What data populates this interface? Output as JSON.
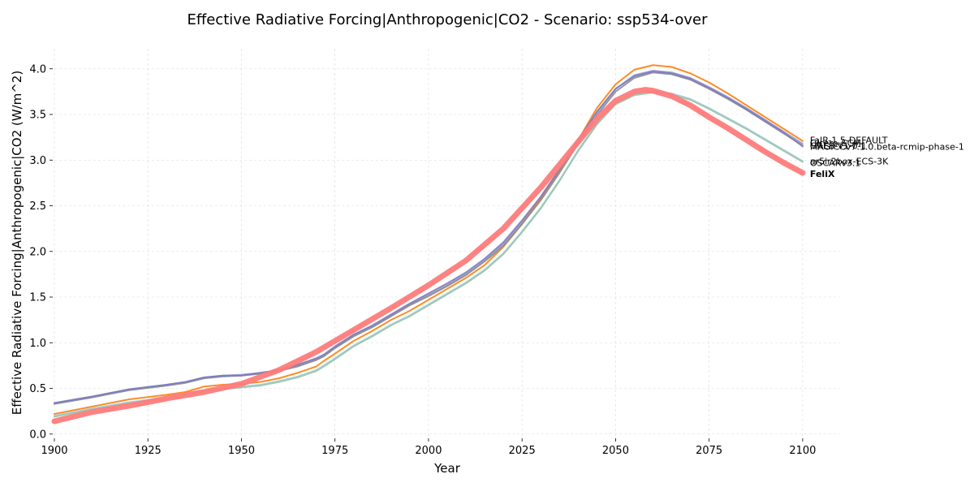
{
  "chart_data": {
    "type": "line",
    "title": "Effective Radiative Forcing|Anthropogenic|CO2 - Scenario: ssp534-over",
    "xlabel": "Year",
    "ylabel": "Effective Radiative Forcing|Anthropogenic|CO2 (W/m^2)",
    "xlim": [
      1900,
      2110
    ],
    "ylim": [
      -0.02,
      4.22
    ],
    "xticks": [
      1900,
      1925,
      1950,
      1975,
      2000,
      2025,
      2050,
      2075,
      2100
    ],
    "yticks": [
      0.0,
      0.5,
      1.0,
      1.5,
      2.0,
      2.5,
      3.0,
      3.5,
      4.0
    ],
    "grid": true,
    "legend": "labels at line ends (right)",
    "series": [
      {
        "name": "Cicero-SCM",
        "color": "#9b9bd4",
        "width": 2,
        "x": [
          1900,
          1910,
          1920,
          1930,
          1935,
          1940,
          1945,
          1950,
          1955,
          1960,
          1965,
          1970,
          1972,
          1975,
          1980,
          1985,
          1990,
          1995,
          2000,
          2005,
          2010,
          2015,
          2020,
          2025,
          2030,
          2035,
          2040,
          2045,
          2050,
          2055,
          2060,
          2065,
          2070,
          2075,
          2080,
          2085,
          2090,
          2095,
          2100
        ],
        "y": [
          0.34,
          0.41,
          0.49,
          0.54,
          0.57,
          0.62,
          0.64,
          0.65,
          0.67,
          0.7,
          0.75,
          0.82,
          0.86,
          0.95,
          1.08,
          1.18,
          1.3,
          1.42,
          1.52,
          1.63,
          1.75,
          1.9,
          2.08,
          2.32,
          2.58,
          2.88,
          3.2,
          3.52,
          3.78,
          3.93,
          3.98,
          3.96,
          3.9,
          3.8,
          3.69,
          3.57,
          3.44,
          3.31,
          3.18
        ]
      },
      {
        "name": "FaIR-1.5-DEFAULT",
        "color": "#ff7f0e",
        "width": 2,
        "x": [
          1900,
          1910,
          1920,
          1930,
          1935,
          1940,
          1945,
          1950,
          1955,
          1960,
          1965,
          1970,
          1972,
          1975,
          1980,
          1985,
          1990,
          1995,
          2000,
          2005,
          2010,
          2015,
          2020,
          2025,
          2030,
          2035,
          2040,
          2045,
          2050,
          2055,
          2060,
          2065,
          2070,
          2075,
          2080,
          2085,
          2090,
          2095,
          2100
        ],
        "y": [
          0.22,
          0.3,
          0.38,
          0.43,
          0.46,
          0.52,
          0.54,
          0.55,
          0.57,
          0.61,
          0.67,
          0.74,
          0.8,
          0.88,
          1.02,
          1.13,
          1.25,
          1.35,
          1.47,
          1.59,
          1.71,
          1.85,
          2.05,
          2.3,
          2.58,
          2.88,
          3.22,
          3.57,
          3.83,
          3.99,
          4.04,
          4.02,
          3.95,
          3.85,
          3.73,
          3.6,
          3.47,
          3.34,
          3.21
        ]
      },
      {
        "name": "GREB-v1-0-1",
        "color": "#8c8c8c",
        "width": 2,
        "x": [
          1900,
          1910,
          1920,
          1930,
          1935,
          1940,
          1945,
          1950,
          1955,
          1960,
          1965,
          1970,
          1972,
          1975,
          1980,
          1985,
          1990,
          1995,
          2000,
          2005,
          2010,
          2015,
          2020,
          2025,
          2030,
          2035,
          2040,
          2045,
          2050,
          2055,
          2060,
          2065,
          2070,
          2075,
          2080,
          2085,
          2090,
          2095,
          2100
        ],
        "y": [
          0.33,
          0.4,
          0.48,
          0.53,
          0.56,
          0.61,
          0.63,
          0.64,
          0.66,
          0.69,
          0.74,
          0.81,
          0.85,
          0.94,
          1.07,
          1.17,
          1.29,
          1.41,
          1.51,
          1.62,
          1.74,
          1.89,
          2.06,
          2.3,
          2.56,
          2.86,
          3.18,
          3.49,
          3.75,
          3.9,
          3.96,
          3.94,
          3.88,
          3.78,
          3.67,
          3.55,
          3.42,
          3.29,
          3.16
        ]
      },
      {
        "name": "MAGICCv7.1.0.beta-rcmip-phase-1",
        "color": "#7b7bc0",
        "width": 2,
        "x": [
          1900,
          1910,
          1920,
          1930,
          1935,
          1940,
          1945,
          1950,
          1955,
          1960,
          1965,
          1970,
          1972,
          1975,
          1980,
          1985,
          1990,
          1995,
          2000,
          2005,
          2010,
          2015,
          2020,
          2025,
          2030,
          2035,
          2040,
          2045,
          2050,
          2055,
          2060,
          2065,
          2070,
          2075,
          2080,
          2085,
          2090,
          2095,
          2100
        ],
        "y": [
          0.34,
          0.41,
          0.49,
          0.54,
          0.57,
          0.62,
          0.64,
          0.64,
          0.67,
          0.7,
          0.76,
          0.83,
          0.87,
          0.96,
          1.09,
          1.19,
          1.31,
          1.43,
          1.54,
          1.65,
          1.77,
          1.92,
          2.1,
          2.34,
          2.6,
          2.9,
          3.22,
          3.53,
          3.78,
          3.92,
          3.97,
          3.95,
          3.89,
          3.79,
          3.68,
          3.56,
          3.43,
          3.3,
          3.15
        ]
      },
      {
        "name": "ar5ir2box-ECS-3K",
        "color": "#a6cee3",
        "width": 2,
        "x": [
          1900,
          1910,
          1920,
          1930,
          1935,
          1940,
          1945,
          1950,
          1955,
          1960,
          1965,
          1970,
          1972,
          1975,
          1980,
          1985,
          1990,
          1995,
          2000,
          2005,
          2010,
          2015,
          2020,
          2025,
          2030,
          2035,
          2040,
          2045,
          2050,
          2055,
          2060,
          2065,
          2070,
          2075,
          2080,
          2085,
          2090,
          2095,
          2100
        ],
        "y": [
          0.2,
          0.28,
          0.35,
          0.4,
          0.43,
          0.48,
          0.5,
          0.52,
          0.54,
          0.58,
          0.63,
          0.7,
          0.75,
          0.83,
          0.97,
          1.08,
          1.2,
          1.3,
          1.42,
          1.54,
          1.66,
          1.8,
          1.98,
          2.22,
          2.48,
          2.78,
          3.11,
          3.4,
          3.62,
          3.72,
          3.75,
          3.73,
          3.67,
          3.57,
          3.46,
          3.35,
          3.23,
          3.11,
          2.99
        ]
      },
      {
        "name": "OSCARv3.1",
        "color": "#99c4a8",
        "width": 2,
        "x": [
          1900,
          1910,
          1920,
          1930,
          1935,
          1940,
          1945,
          1950,
          1955,
          1960,
          1965,
          1970,
          1972,
          1975,
          1980,
          1985,
          1990,
          1995,
          2000,
          2005,
          2010,
          2015,
          2020,
          2025,
          2030,
          2035,
          2040,
          2045,
          2050,
          2055,
          2060,
          2065,
          2070,
          2075,
          2080,
          2085,
          2090,
          2095,
          2100
        ],
        "y": [
          0.19,
          0.27,
          0.34,
          0.39,
          0.42,
          0.47,
          0.49,
          0.51,
          0.53,
          0.57,
          0.62,
          0.69,
          0.74,
          0.82,
          0.96,
          1.07,
          1.19,
          1.29,
          1.41,
          1.53,
          1.65,
          1.79,
          1.97,
          2.21,
          2.47,
          2.77,
          3.1,
          3.39,
          3.61,
          3.71,
          3.74,
          3.72,
          3.66,
          3.56,
          3.45,
          3.34,
          3.22,
          3.1,
          2.98
        ]
      },
      {
        "name": "FeliX",
        "color": "#ff7b7b",
        "width": 7,
        "x": [
          1900,
          1910,
          1920,
          1930,
          1940,
          1950,
          1960,
          1970,
          1980,
          1990,
          2000,
          2010,
          2020,
          2030,
          2040,
          2045,
          2050,
          2055,
          2058,
          2060,
          2065,
          2070,
          2075,
          2080,
          2085,
          2090,
          2095,
          2100
        ],
        "y": [
          0.14,
          0.24,
          0.31,
          0.39,
          0.46,
          0.55,
          0.7,
          0.9,
          1.14,
          1.38,
          1.63,
          1.9,
          2.25,
          2.7,
          3.2,
          3.45,
          3.65,
          3.75,
          3.77,
          3.76,
          3.7,
          3.6,
          3.47,
          3.35,
          3.22,
          3.09,
          2.97,
          2.86
        ]
      }
    ]
  },
  "end_labels": [
    {
      "text": "FaIR-1.5-DEFAULT",
      "y": 3.22,
      "bold": false
    },
    {
      "text": "Cicero-SCM",
      "y": 3.19,
      "bold": false
    },
    {
      "text": "GREB-v1-0-1",
      "y": 3.16,
      "bold": false
    },
    {
      "text": "MAGICCv7.1.0.beta-rcmip-phase-1",
      "y": 3.15,
      "bold": false
    },
    {
      "text": "ar5ir2box-ECS-3K",
      "y": 2.99,
      "bold": false
    },
    {
      "text": "OSCARv3.1",
      "y": 2.97,
      "bold": false
    },
    {
      "text": "FeliX",
      "y": 2.85,
      "bold": true
    }
  ]
}
